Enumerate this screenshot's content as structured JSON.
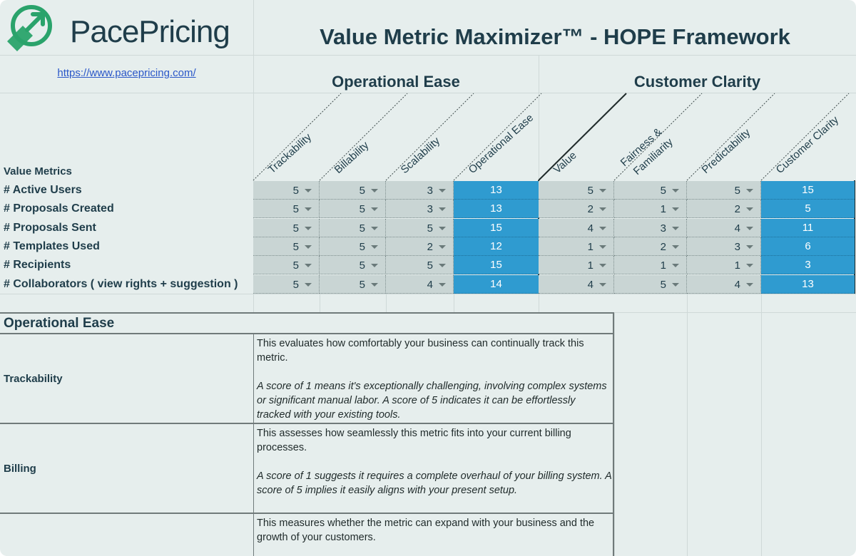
{
  "logo": {
    "brand_a": "Pace",
    "brand_b": "Pricing",
    "icon": "tag-arrow-icon"
  },
  "link": "https://www.pacepricing.com/",
  "title": "Value Metric Maximizer™ - HOPE Framework",
  "groups": {
    "operational": "Operational Ease",
    "customer": "Customer Clarity"
  },
  "columns": {
    "trackability": "Trackability",
    "billability": "Billability",
    "scalability": "Scalability",
    "operational_ease": "Operational Ease",
    "value": "Value",
    "fairness_1": "Fairness &",
    "fairness_2": "Familiarity",
    "predictability": "Predictability",
    "customer_clarity": "Customer Clarity"
  },
  "value_metrics_label": "Value Metrics",
  "rows": [
    {
      "name": "# Active Users",
      "s": [
        "5",
        "5",
        "3"
      ],
      "op_total": "13",
      "c": [
        "5",
        "5",
        "5"
      ],
      "cc_total": "15"
    },
    {
      "name": "# Proposals Created",
      "s": [
        "5",
        "5",
        "3"
      ],
      "op_total": "13",
      "c": [
        "2",
        "1",
        "2"
      ],
      "cc_total": "5"
    },
    {
      "name": "# Proposals Sent",
      "s": [
        "5",
        "5",
        "5"
      ],
      "op_total": "15",
      "c": [
        "4",
        "3",
        "4"
      ],
      "cc_total": "11"
    },
    {
      "name": "# Templates Used",
      "s": [
        "5",
        "5",
        "2"
      ],
      "op_total": "12",
      "c": [
        "1",
        "2",
        "3"
      ],
      "cc_total": "6"
    },
    {
      "name": "# Recipients",
      "s": [
        "5",
        "5",
        "5"
      ],
      "op_total": "15",
      "c": [
        "1",
        "1",
        "1"
      ],
      "cc_total": "3"
    },
    {
      "name": "# Collaborators ( view rights + suggestion )",
      "s": [
        "5",
        "5",
        "4"
      ],
      "op_total": "14",
      "c": [
        "4",
        "5",
        "4"
      ],
      "cc_total": "13"
    }
  ],
  "description": {
    "heading": "Operational Ease",
    "items": [
      {
        "name": "Trackability",
        "text": "This evaluates how comfortably your business can continually track this metric.",
        "note": "A score of 1 means it's exceptionally challenging, involving complex systems or significant manual labor. A score of 5 indicates it can be effortlessly tracked with your existing tools."
      },
      {
        "name": "Billing",
        "text": "This assesses how seamlessly this metric fits into your current billing processes.",
        "note": "A score of 1 suggests it requires a complete overhaul of your billing system. A score of 5 implies it easily aligns with your present setup."
      },
      {
        "name": "",
        "text": "This measures whether the metric can expand with your business and the growth of your customers.",
        "note": ""
      }
    ]
  }
}
